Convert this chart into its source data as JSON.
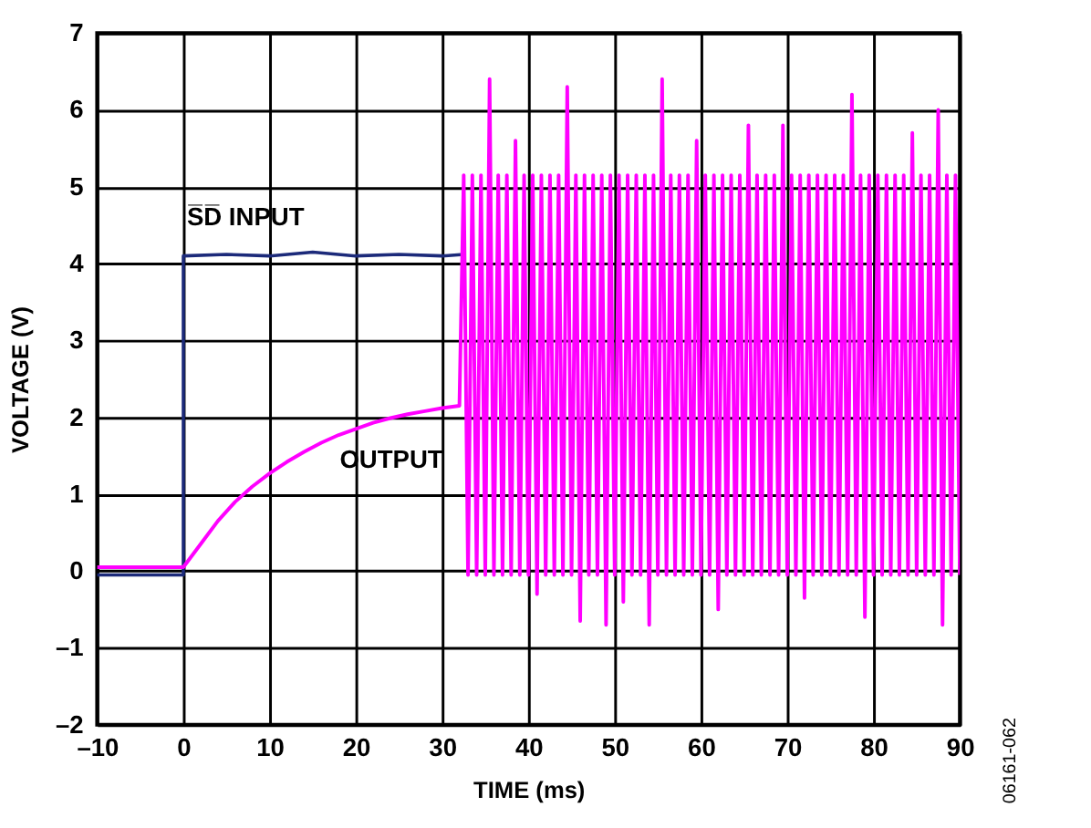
{
  "chart_data": {
    "type": "line",
    "xlabel": "TIME (ms)",
    "ylabel": "VOLTAGE (V)",
    "xlim": [
      -10,
      90
    ],
    "xticks": [
      {
        "value": -10,
        "label": "–10"
      },
      0,
      10,
      20,
      30,
      40,
      50,
      60,
      70,
      80,
      90
    ],
    "ylim": [
      -2,
      7
    ],
    "yticks": [
      {
        "value": -2,
        "label": "–2"
      },
      {
        "value": -1,
        "label": "–1"
      },
      0,
      1,
      2,
      3,
      4,
      5,
      6,
      7
    ],
    "grid": true,
    "marker": "none",
    "line_style": "solid",
    "annotations": [
      "06161-062"
    ],
    "series": [
      {
        "name": "S̅D̅ INPUT",
        "color": "#1c2a7a",
        "x": [
          -10,
          -5,
          0,
          0,
          5,
          10,
          15,
          20,
          25,
          30,
          32.5
        ],
        "values": [
          -0.05,
          -0.05,
          -0.05,
          4.1,
          4.12,
          4.1,
          4.15,
          4.1,
          4.12,
          4.1,
          4.12
        ]
      },
      {
        "name": "OUTPUT",
        "color": "#ff00ff",
        "x": [
          -10,
          -8,
          -6,
          -4,
          -2,
          0,
          2,
          4,
          6,
          8,
          10,
          12,
          14,
          16,
          18,
          20,
          22,
          24,
          26,
          28,
          30,
          32,
          32.5,
          33,
          33.5,
          34,
          34.5,
          35,
          35.5,
          36,
          36.5,
          37,
          37.5,
          38,
          38.5,
          39,
          39.5,
          40,
          40.5,
          41,
          41.5,
          42,
          42.5,
          43,
          43.5,
          44,
          44.5,
          45,
          45.5,
          46,
          46.5,
          47,
          47.5,
          48,
          48.5,
          49,
          49.5,
          50,
          50.5,
          51,
          51.5,
          52,
          52.5,
          53,
          53.5,
          54,
          54.5,
          55,
          55.5,
          56,
          56.5,
          57,
          57.5,
          58,
          58.5,
          59,
          59.5,
          60,
          60.5,
          61,
          61.5,
          62,
          62.5,
          63,
          63.5,
          64,
          64.5,
          65,
          65.5,
          66,
          66.5,
          67,
          67.5,
          68,
          68.5,
          69,
          69.5,
          70,
          70.5,
          71,
          71.5,
          72,
          72.5,
          73,
          73.5,
          74,
          74.5,
          75,
          75.5,
          76,
          76.5,
          77,
          77.5,
          78,
          78.5,
          79,
          79.5,
          80,
          80.5,
          81,
          81.5,
          82,
          82.5,
          83,
          83.5,
          84,
          84.5,
          85,
          85.5,
          86,
          86.5,
          87,
          87.5,
          88,
          88.5,
          89,
          89.5,
          90
        ],
        "values": [
          0.05,
          0.05,
          0.05,
          0.05,
          0.05,
          0.05,
          0.35,
          0.65,
          0.9,
          1.1,
          1.27,
          1.42,
          1.55,
          1.67,
          1.77,
          1.85,
          1.93,
          1.99,
          2.04,
          2.08,
          2.12,
          2.15,
          5.15,
          -0.05,
          5.15,
          -0.05,
          5.15,
          -0.05,
          6.4,
          -0.05,
          5.15,
          -0.05,
          5.15,
          -0.05,
          5.6,
          -0.05,
          5.15,
          -0.05,
          5.15,
          -0.3,
          5.15,
          -0.05,
          5.15,
          -0.05,
          5.15,
          -0.05,
          6.3,
          -0.05,
          5.15,
          -0.65,
          5.15,
          -0.05,
          5.15,
          -0.05,
          5.15,
          -0.7,
          5.15,
          -0.05,
          5.15,
          -0.4,
          5.15,
          -0.05,
          5.15,
          -0.05,
          5.15,
          -0.7,
          5.15,
          -0.05,
          6.4,
          -0.05,
          5.15,
          -0.05,
          5.15,
          -0.05,
          5.15,
          -0.05,
          5.6,
          -0.05,
          5.15,
          -0.05,
          5.15,
          -0.5,
          5.15,
          -0.05,
          5.15,
          -0.05,
          5.15,
          -0.05,
          5.8,
          -0.05,
          5.15,
          -0.05,
          5.15,
          -0.05,
          5.15,
          -0.05,
          5.8,
          -0.05,
          5.15,
          -0.05,
          5.15,
          -0.35,
          5.15,
          -0.05,
          5.15,
          -0.05,
          5.15,
          -0.05,
          5.15,
          -0.05,
          5.15,
          -0.05,
          6.2,
          -0.05,
          5.15,
          -0.6,
          5.15,
          -0.05,
          5.15,
          -0.05,
          5.15,
          -0.05,
          5.15,
          -0.05,
          5.15,
          -0.05,
          5.7,
          -0.05,
          5.15,
          -0.05,
          5.15,
          -0.05,
          6.0,
          -0.7,
          5.15,
          -0.05,
          5.15,
          -0.05
        ]
      }
    ]
  }
}
